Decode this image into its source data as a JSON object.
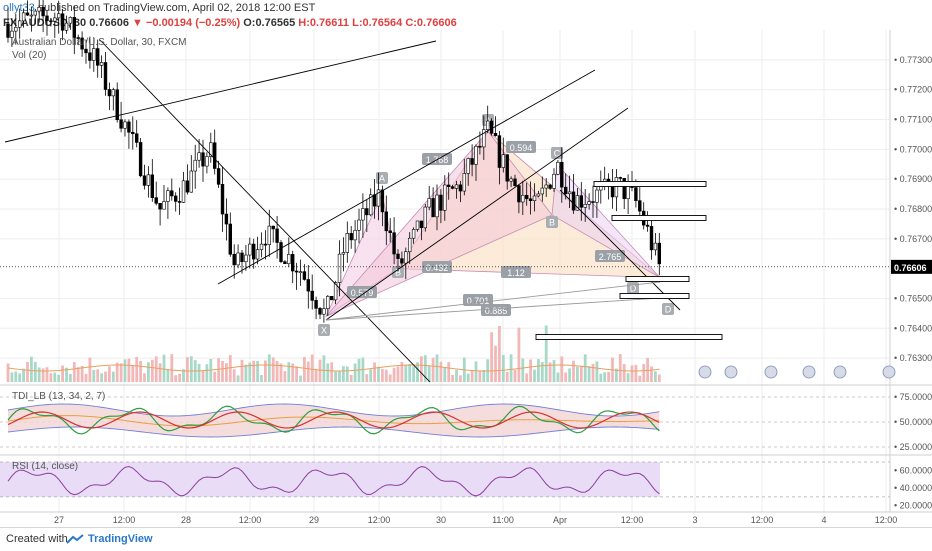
{
  "header": {
    "user": "ollyt33",
    "published": "published on TradingView.com, April 02, 2018 12:00 EST",
    "symbol": "FX:AUDUSD, 30",
    "last": "0.76606",
    "change": "−0.00194 (−0.25%)",
    "o": "O:0.76565",
    "h": "H:0.76611",
    "l": "L:0.76564",
    "c": "C:0.76606"
  },
  "legends": {
    "main": "Australian Dollar/U.S. Dollar, 30, FXCM",
    "vol": "Vol (20)",
    "tdi": "TDI_LB (13, 34, 2, 7)",
    "rsi": "RSI (14, close)"
  },
  "footer": {
    "created": "Created with",
    "brand": "TradingView"
  },
  "colors": {
    "bull": "#ffffff",
    "bear": "#000000",
    "price_tag": "#000000"
  },
  "chart_data": {
    "type": "candlestick",
    "price_axis": [
      "0.77300",
      "0.77200",
      "0.77100",
      "0.77000",
      "0.76900",
      "0.76800",
      "0.76700",
      "0.76606",
      "0.76500",
      "0.76400",
      "0.76300"
    ],
    "price_range": [
      0.7622,
      0.774
    ],
    "current_price": "0.76606",
    "time_axis": [
      "27",
      "12:00",
      "28",
      "12:00",
      "29",
      "12:00",
      "30",
      "11:00",
      "Apr",
      "12:00",
      "3",
      "12:00",
      "4",
      "12:00"
    ],
    "pattern_points": [
      {
        "label": "X",
        "price": 0.7644
      },
      {
        "label": "A",
        "price": 0.7706
      },
      {
        "label": "B",
        "price": 0.766
      },
      {
        "label": "C",
        "price": 0.7695
      },
      {
        "label": "D",
        "price": 0.7657
      },
      {
        "label": "A",
        "price": 0.7685
      },
      {
        "label": "B",
        "price": 0.7678
      },
      {
        "label": "D",
        "price": 0.7649
      }
    ],
    "ratios": [
      "1.768",
      "0.594",
      "0.432",
      "1.12",
      "2.765",
      "0.579",
      "0.701",
      "0.885"
    ],
    "tdi_axis": [
      "75.0000",
      "50.0000",
      "25.0000"
    ],
    "rsi_axis": [
      "60.0000",
      "40.0000",
      "20.0000"
    ]
  }
}
